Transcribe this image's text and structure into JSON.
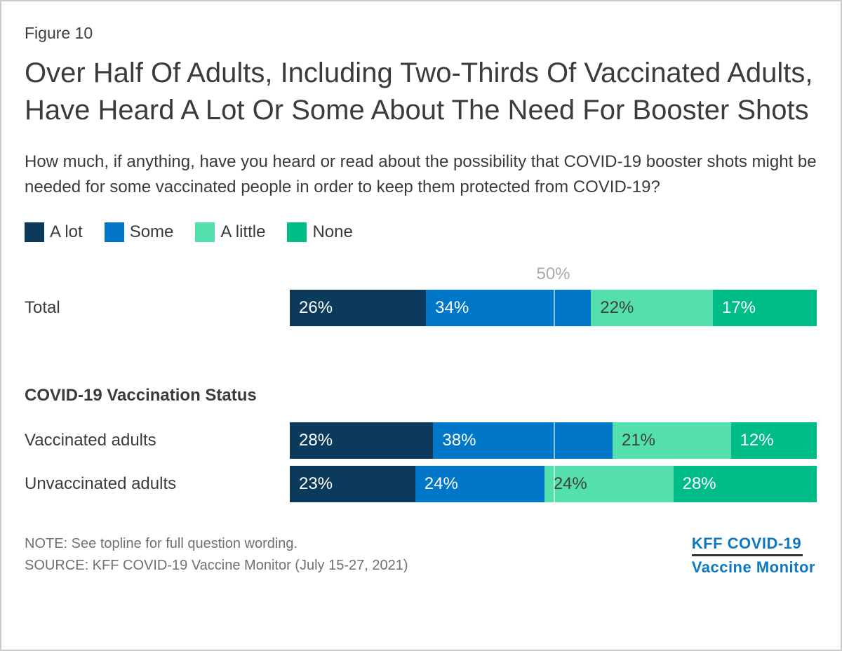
{
  "figure_label": "Figure 10",
  "title": "Over Half Of Adults, Including Two-Thirds Of Vaccinated Adults, Have Heard A Lot Or Some About The Need For Booster Shots",
  "subtitle": "How much, if anything, have you heard or read about the possibility that COVID-19 booster shots might be needed for some vaccinated people in order to keep them protected from COVID-19?",
  "legend": [
    {
      "label": "A lot",
      "color": "#0b3a5c"
    },
    {
      "label": "Some",
      "color": "#0077c8"
    },
    {
      "label": "A little",
      "color": "#53e0ad"
    },
    {
      "label": "None",
      "color": "#00bd87"
    }
  ],
  "chart_data": {
    "type": "bar",
    "orientation": "horizontal-stacked",
    "categories": [
      "Total",
      "Vaccinated adults",
      "Unvaccinated adults"
    ],
    "series": [
      {
        "name": "A lot",
        "color": "#0b3a5c",
        "values": [
          26,
          28,
          23
        ]
      },
      {
        "name": "Some",
        "color": "#0077c8",
        "values": [
          34,
          38,
          24
        ]
      },
      {
        "name": "A little",
        "color": "#53e0ad",
        "values": [
          22,
          21,
          24
        ]
      },
      {
        "name": "None",
        "color": "#00bd87",
        "values": [
          17,
          12,
          28
        ]
      }
    ],
    "value_suffix": "%",
    "xlim": [
      0,
      100
    ],
    "gridline": {
      "value": 50,
      "label": "50%"
    },
    "section_header": "COVID-19 Vaccination Status",
    "legend_position": "top"
  },
  "note": "NOTE: See topline for full question wording.",
  "source": "SOURCE: KFF COVID-19 Vaccine Monitor (July 15-27, 2021)",
  "logo": {
    "line1": "KFF COVID-19",
    "line2": "Vaccine Monitor"
  }
}
